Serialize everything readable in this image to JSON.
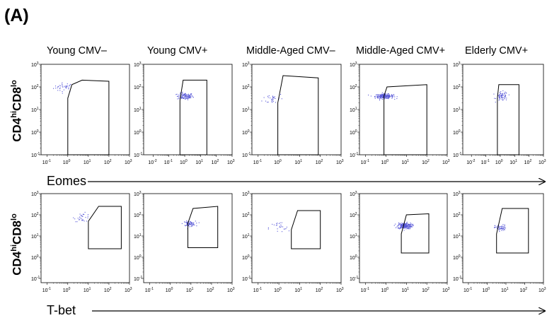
{
  "panel_label": "(A)",
  "columns": [
    "Young CMV–",
    "Young CMV+",
    "Middle-Aged CMV–",
    "Middle-Aged CMV+",
    "Elderly CMV+"
  ],
  "rows": [
    {
      "ylabel_base1": "CD4",
      "ylabel_sup1": "hi",
      "ylabel_base2": "CD8",
      "ylabel_sup2": "lo",
      "xlabel": "Eomes"
    },
    {
      "ylabel_base1": "CD4",
      "ylabel_sup1": "hi",
      "ylabel_base2": "CD8",
      "ylabel_sup2": "lo",
      "xlabel": "T-bet"
    }
  ],
  "colors": {
    "dots": "#5a5ad8",
    "gate": "#000000",
    "axis": "#000000"
  },
  "chart_data": [
    {
      "type": "scatter",
      "x_axis": "Eomes",
      "y_axis": "CD4hiCD8lo",
      "column": "Young CMV–",
      "xlim_log10": [
        -1.3,
        3
      ],
      "ylim_log10": [
        -1,
        3
      ],
      "x_ticks": [
        "-1",
        "0",
        "1",
        "2",
        "3"
      ],
      "y_ticks": [
        "-1",
        "0",
        "1",
        "2",
        "3"
      ],
      "cluster": {
        "x_center_log10": -0.2,
        "y_center_log10": 2.0,
        "x_spread": 0.5,
        "y_spread": 0.2,
        "points": 35
      },
      "gate_log10": [
        [
          0.0,
          -1.0
        ],
        [
          0.0,
          1.5
        ],
        [
          0.2,
          2.1
        ],
        [
          0.7,
          2.3
        ],
        [
          2.0,
          2.25
        ],
        [
          2.0,
          -1.0
        ]
      ]
    },
    {
      "type": "scatter",
      "x_axis": "Eomes",
      "y_axis": "CD4hiCD8lo",
      "column": "Young CMV+",
      "xlim_log10": [
        -2.6,
        3
      ],
      "ylim_log10": [
        -1,
        3
      ],
      "x_ticks": [
        "-2",
        "-1",
        "0",
        "1",
        "2",
        "3"
      ],
      "y_ticks": [
        "-1",
        "0",
        "1",
        "2",
        "3"
      ],
      "cluster": {
        "x_center_log10": 0.0,
        "y_center_log10": 1.6,
        "x_spread": 0.5,
        "y_spread": 0.15,
        "points": 110
      },
      "gate_log10": [
        [
          -0.3,
          -1.0
        ],
        [
          -0.3,
          1.4
        ],
        [
          -0.1,
          2.3
        ],
        [
          1.4,
          2.3
        ],
        [
          1.4,
          -1.0
        ]
      ]
    },
    {
      "type": "scatter",
      "x_axis": "Eomes",
      "y_axis": "CD4hiCD8lo",
      "column": "Middle-Aged CMV–",
      "xlim_log10": [
        -1.3,
        3
      ],
      "ylim_log10": [
        -1,
        3
      ],
      "x_ticks": [
        "-1",
        "0",
        "1",
        "2",
        "3"
      ],
      "y_ticks": [
        "-1",
        "0",
        "1",
        "2",
        "3"
      ],
      "cluster": {
        "x_center_log10": -0.3,
        "y_center_log10": 1.5,
        "x_spread": 0.5,
        "y_spread": 0.25,
        "points": 30
      },
      "gate_log10": [
        [
          -0.05,
          -1.0
        ],
        [
          -0.05,
          1.3
        ],
        [
          0.2,
          2.5
        ],
        [
          1.9,
          2.4
        ],
        [
          1.9,
          -1.0
        ]
      ]
    },
    {
      "type": "scatter",
      "x_axis": "Eomes",
      "y_axis": "CD4hiCD8lo",
      "column": "Middle-Aged CMV+",
      "xlim_log10": [
        -1.3,
        3
      ],
      "ylim_log10": [
        -1,
        3
      ],
      "x_ticks": [
        "-1",
        "0",
        "1",
        "2",
        "3"
      ],
      "y_ticks": [
        "-1",
        "0",
        "1",
        "2",
        "3"
      ],
      "cluster": {
        "x_center_log10": -0.1,
        "y_center_log10": 1.6,
        "x_spread": 0.45,
        "y_spread": 0.1,
        "points": 230
      },
      "gate_log10": [
        [
          -0.1,
          -1.0
        ],
        [
          -0.1,
          1.6
        ],
        [
          0.05,
          2.0
        ],
        [
          2.0,
          2.1
        ],
        [
          2.0,
          -1.0
        ]
      ]
    },
    {
      "type": "scatter",
      "x_axis": "Eomes",
      "y_axis": "CD4hiCD8lo",
      "column": "Elderly CMV+",
      "xlim_log10": [
        -2.6,
        3
      ],
      "ylim_log10": [
        -1,
        3
      ],
      "x_ticks": [
        "-2",
        "-1",
        "0",
        "1",
        "2",
        "3"
      ],
      "y_ticks": [
        "-1",
        "0",
        "1",
        "2",
        "3"
      ],
      "cluster": {
        "x_center_log10": 0.1,
        "y_center_log10": 1.6,
        "x_spread": 0.4,
        "y_spread": 0.2,
        "points": 70
      },
      "gate_log10": [
        [
          -0.2,
          -1.0
        ],
        [
          -0.2,
          1.5
        ],
        [
          -0.1,
          2.1
        ],
        [
          1.3,
          2.1
        ],
        [
          1.3,
          -1.0
        ]
      ]
    },
    {
      "type": "scatter",
      "x_axis": "T-bet",
      "y_axis": "CD4hiCD8lo",
      "column": "Young CMV–",
      "xlim_log10": [
        -1.3,
        3
      ],
      "ylim_log10": [
        -1.2,
        3
      ],
      "x_ticks": [
        "-1",
        "0",
        "1",
        "2",
        "3"
      ],
      "y_ticks": [
        "-1",
        "0",
        "1",
        "2",
        "3"
      ],
      "cluster": {
        "x_center_log10": 0.7,
        "y_center_log10": 1.9,
        "x_spread": 0.4,
        "y_spread": 0.2,
        "points": 30
      },
      "gate_log10": [
        [
          1.0,
          0.4
        ],
        [
          1.0,
          1.7
        ],
        [
          1.5,
          2.4
        ],
        [
          2.6,
          2.4
        ],
        [
          2.6,
          0.4
        ]
      ]
    },
    {
      "type": "scatter",
      "x_axis": "T-bet",
      "y_axis": "CD4hiCD8lo",
      "column": "Young CMV+",
      "xlim_log10": [
        -1.3,
        3
      ],
      "ylim_log10": [
        -1.2,
        3
      ],
      "x_ticks": [
        "-1",
        "0",
        "1",
        "2",
        "3"
      ],
      "y_ticks": [
        "-1",
        "0",
        "1",
        "2",
        "3"
      ],
      "cluster": {
        "x_center_log10": 0.9,
        "y_center_log10": 1.6,
        "x_spread": 0.3,
        "y_spread": 0.12,
        "points": 70
      },
      "gate_log10": [
        [
          0.85,
          0.45
        ],
        [
          0.85,
          1.6
        ],
        [
          1.1,
          2.3
        ],
        [
          2.3,
          2.4
        ],
        [
          2.3,
          0.45
        ]
      ]
    },
    {
      "type": "scatter",
      "x_axis": "T-bet",
      "y_axis": "CD4hiCD8lo",
      "column": "Middle-Aged CMV–",
      "xlim_log10": [
        -1.3,
        3
      ],
      "ylim_log10": [
        -1.2,
        3
      ],
      "x_ticks": [
        "-1",
        "0",
        "1",
        "2",
        "3"
      ],
      "y_ticks": [
        "-1",
        "0",
        "1",
        "2",
        "3"
      ],
      "cluster": {
        "x_center_log10": 0.0,
        "y_center_log10": 1.4,
        "x_spread": 0.5,
        "y_spread": 0.3,
        "points": 25
      },
      "gate_log10": [
        [
          0.6,
          0.4
        ],
        [
          0.6,
          1.3
        ],
        [
          0.9,
          2.2
        ],
        [
          2.0,
          2.2
        ],
        [
          2.0,
          0.4
        ]
      ]
    },
    {
      "type": "scatter",
      "x_axis": "T-bet",
      "y_axis": "CD4hiCD8lo",
      "column": "Middle-Aged CMV+",
      "xlim_log10": [
        -1.3,
        3
      ],
      "ylim_log10": [
        -1.2,
        3
      ],
      "x_ticks": [
        "-1",
        "0",
        "1",
        "2",
        "3"
      ],
      "y_ticks": [
        "-1",
        "0",
        "1",
        "2",
        "3"
      ],
      "cluster": {
        "x_center_log10": 0.9,
        "y_center_log10": 1.5,
        "x_spread": 0.35,
        "y_spread": 0.15,
        "points": 220
      },
      "gate_log10": [
        [
          0.75,
          0.2
        ],
        [
          0.75,
          1.1
        ],
        [
          1.0,
          2.0
        ],
        [
          2.1,
          2.05
        ],
        [
          2.1,
          0.2
        ]
      ]
    },
    {
      "type": "scatter",
      "x_axis": "T-bet",
      "y_axis": "CD4hiCD8lo",
      "column": "Elderly CMV+",
      "xlim_log10": [
        -1.3,
        3
      ],
      "ylim_log10": [
        -1.2,
        3
      ],
      "x_ticks": [
        "-1",
        "0",
        "1",
        "2",
        "3"
      ],
      "y_ticks": [
        "-1",
        "0",
        "1",
        "2",
        "3"
      ],
      "cluster": {
        "x_center_log10": 0.7,
        "y_center_log10": 1.4,
        "x_spread": 0.3,
        "y_spread": 0.15,
        "points": 55
      },
      "gate_log10": [
        [
          0.5,
          0.2
        ],
        [
          0.5,
          1.1
        ],
        [
          0.8,
          2.3
        ],
        [
          2.2,
          2.3
        ],
        [
          2.2,
          0.2
        ]
      ]
    }
  ]
}
